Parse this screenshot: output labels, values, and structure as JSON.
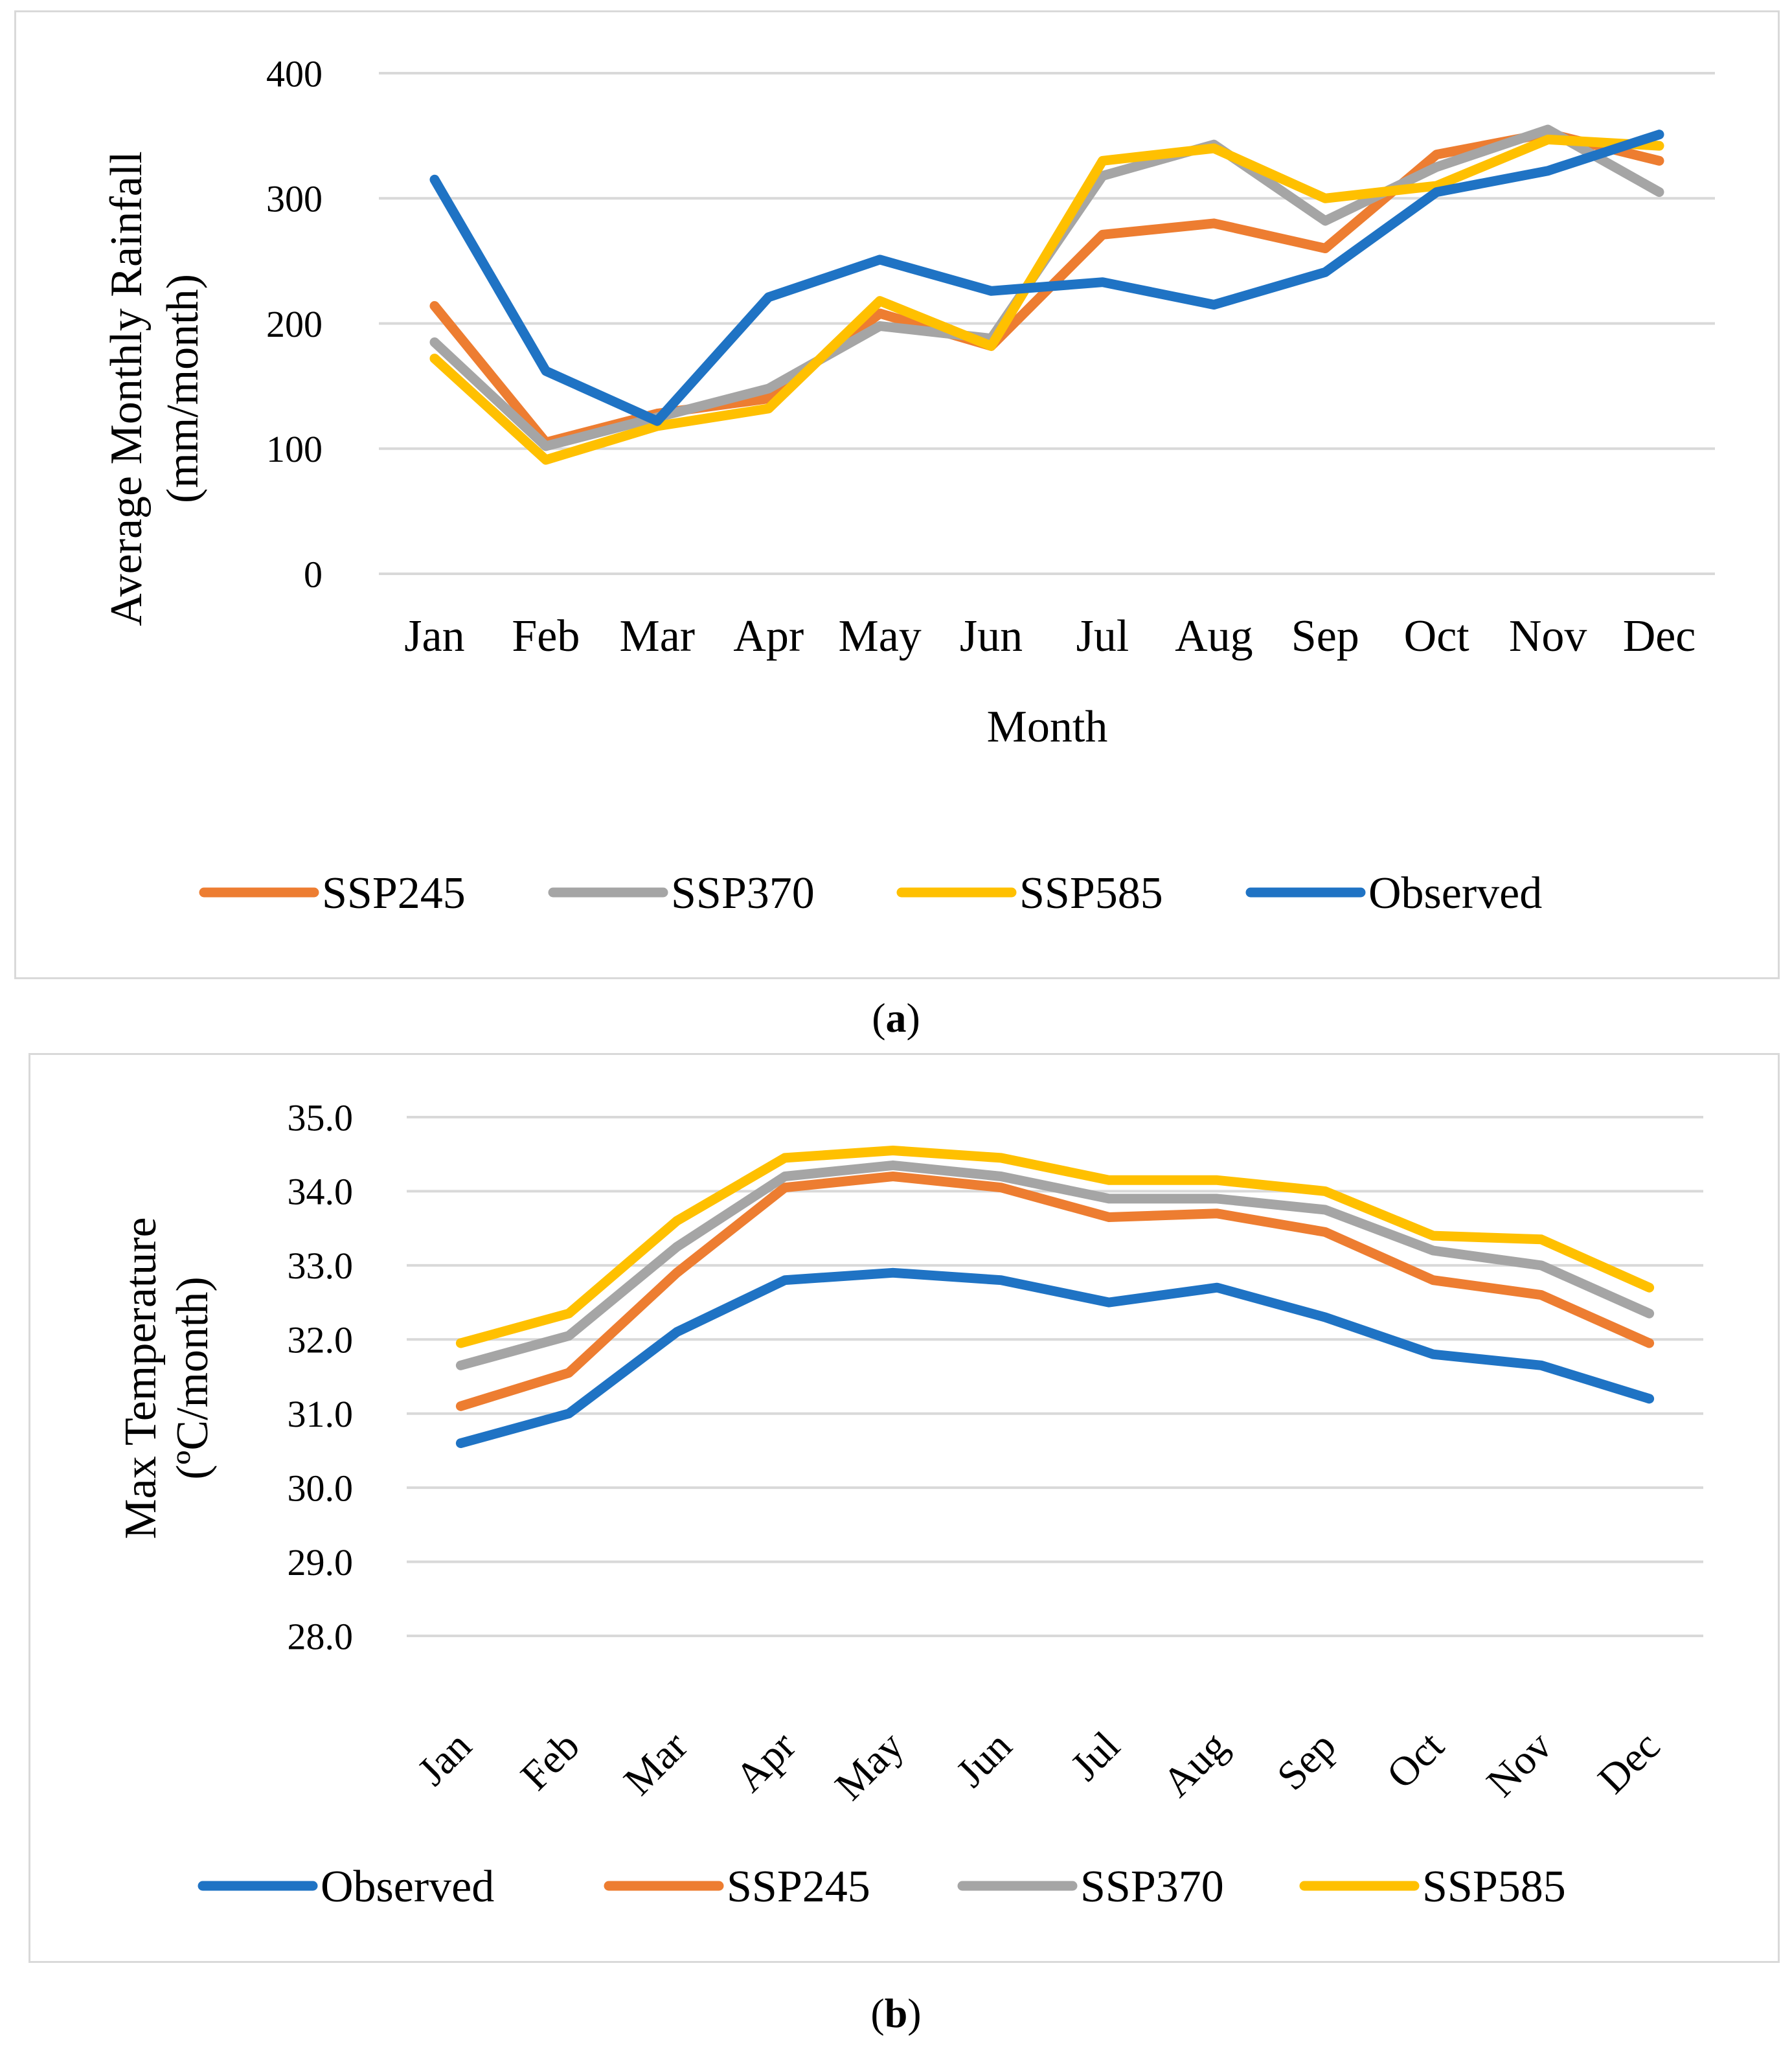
{
  "chart_data": [
    {
      "type": "line",
      "panel_label": "a",
      "categories": [
        "Jan",
        "Feb",
        "Mar",
        "Apr",
        "May",
        "Jun",
        "Jul",
        "Aug",
        "Sep",
        "Oct",
        "Nov",
        "Dec"
      ],
      "xlabel": "Month",
      "ylabel": [
        "Average Monthly Rainfall",
        "(mm/month)"
      ],
      "ylim": [
        0,
        400
      ],
      "yticks": [
        0,
        100,
        200,
        300,
        400
      ],
      "ytick_labels": [
        "0",
        "100",
        "200",
        "300",
        "400"
      ],
      "grid": true,
      "legend_position": "bottom",
      "series": [
        {
          "name": "SSP245",
          "color": "#ED7D31",
          "values": [
            214,
            105,
            128,
            140,
            208,
            182,
            271,
            280,
            260,
            335,
            352,
            330
          ]
        },
        {
          "name": "SSP370",
          "color": "#A5A5A5",
          "values": [
            185,
            102,
            125,
            148,
            198,
            188,
            318,
            343,
            282,
            325,
            355,
            305
          ]
        },
        {
          "name": "SSP585",
          "color": "#FFC000",
          "values": [
            172,
            91,
            118,
            132,
            218,
            182,
            330,
            340,
            300,
            310,
            347,
            342
          ]
        },
        {
          "name": "Observed",
          "color": "#1F73C4",
          "values": [
            315,
            162,
            122,
            221,
            251,
            226,
            233,
            215,
            241,
            305,
            322,
            351
          ]
        }
      ]
    },
    {
      "type": "line",
      "panel_label": "b",
      "categories": [
        "Jan",
        "Feb",
        "Mar",
        "Apr",
        "May",
        "Jun",
        "Jul",
        "Aug",
        "Sep",
        "Oct",
        "Nov",
        "Dec"
      ],
      "xlabel": "",
      "ylabel": [
        "Max Temperature",
        "(ºC/month)"
      ],
      "ylim": [
        28,
        35
      ],
      "yticks": [
        28,
        29,
        30,
        31,
        32,
        33,
        34,
        35
      ],
      "ytick_labels": [
        "28.0",
        "29.0",
        "30.0",
        "31.0",
        "32.0",
        "33.0",
        "34.0",
        "35.0"
      ],
      "grid": true,
      "legend_position": "bottom",
      "series": [
        {
          "name": "Observed",
          "color": "#1F73C4",
          "values": [
            30.6,
            31.0,
            32.1,
            32.8,
            32.9,
            32.8,
            32.5,
            32.7,
            32.3,
            31.8,
            31.65,
            31.2
          ]
        },
        {
          "name": "SSP245",
          "color": "#ED7D31",
          "values": [
            31.1,
            31.55,
            32.9,
            34.05,
            34.2,
            34.05,
            33.65,
            33.7,
            33.45,
            32.8,
            32.6,
            31.95
          ]
        },
        {
          "name": "SSP370",
          "color": "#A5A5A5",
          "values": [
            31.65,
            32.05,
            33.25,
            34.2,
            34.35,
            34.2,
            33.9,
            33.9,
            33.75,
            33.2,
            33.0,
            32.35
          ]
        },
        {
          "name": "SSP585",
          "color": "#FFC000",
          "values": [
            31.95,
            32.35,
            33.6,
            34.45,
            34.55,
            34.45,
            34.15,
            34.15,
            34.0,
            33.4,
            33.35,
            32.7
          ]
        }
      ]
    }
  ]
}
